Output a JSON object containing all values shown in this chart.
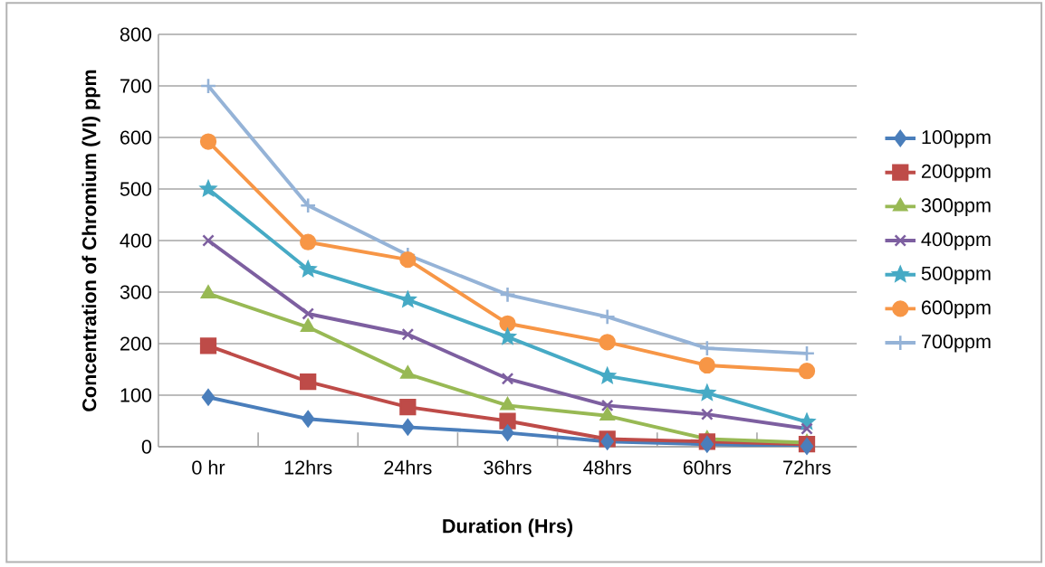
{
  "chart_data": {
    "type": "line",
    "xlabel": "Duration (Hrs)",
    "ylabel": "Concentration of Chromium (VI) ppm",
    "categories": [
      "0 hr",
      "12hrs",
      "24hrs",
      "36hrs",
      "48hrs",
      "60hrs",
      "72hrs"
    ],
    "ylim": [
      0,
      800
    ],
    "yticks": [
      0,
      100,
      200,
      300,
      400,
      500,
      600,
      700,
      800
    ],
    "grid": "y",
    "legend": "right",
    "series": [
      {
        "name": "100ppm",
        "color": "#4a7ebb",
        "marker": "diamond",
        "values": [
          96,
          54,
          38,
          27,
          10,
          5,
          1
        ]
      },
      {
        "name": "200ppm",
        "color": "#be4b48",
        "marker": "square",
        "values": [
          196,
          126,
          77,
          50,
          15,
          10,
          5
        ]
      },
      {
        "name": "300ppm",
        "color": "#98b954",
        "marker": "triangle",
        "values": [
          297,
          232,
          141,
          80,
          60,
          15,
          8
        ]
      },
      {
        "name": "400ppm",
        "color": "#7d5fa0",
        "marker": "cross",
        "values": [
          400,
          258,
          218,
          132,
          80,
          63,
          35
        ]
      },
      {
        "name": "500ppm",
        "color": "#46aac5",
        "marker": "star",
        "values": [
          500,
          344,
          285,
          213,
          137,
          104,
          48
        ]
      },
      {
        "name": "600ppm",
        "color": "#f79646",
        "marker": "circle",
        "values": [
          592,
          397,
          363,
          239,
          203,
          158,
          147
        ]
      },
      {
        "name": "700ppm",
        "color": "#95b3d7",
        "marker": "plus",
        "values": [
          700,
          468,
          372,
          295,
          252,
          191,
          181
        ]
      }
    ]
  }
}
